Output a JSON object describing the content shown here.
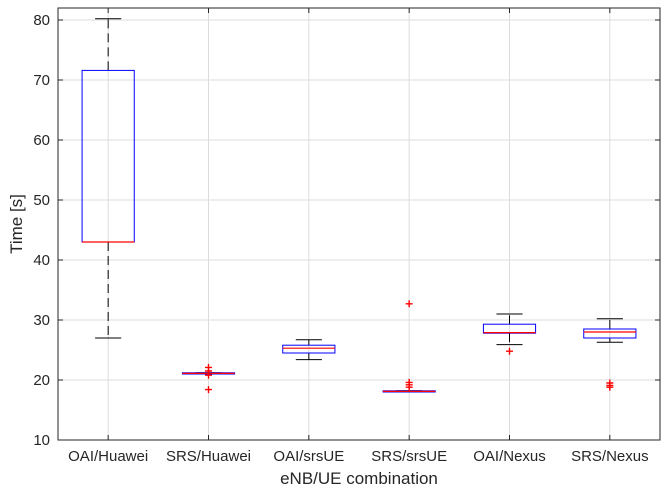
{
  "chart_data": {
    "type": "box",
    "title": "",
    "xlabel": "eNB/UE combination",
    "ylabel": "Time [s]",
    "ylim": [
      10,
      82
    ],
    "yticks": [
      10,
      20,
      30,
      40,
      50,
      60,
      70,
      80
    ],
    "grid": true,
    "categories": [
      "OAI/Huawei",
      "SRS/Huawei",
      "OAI/srsUE",
      "SRS/srsUE",
      "OAI/Nexus",
      "SRS/Nexus"
    ],
    "boxes": [
      {
        "category": "OAI/Huawei",
        "whisker_low": 27.0,
        "q1": 43.0,
        "median": 43.0,
        "q3": 71.6,
        "whisker_high": 80.2,
        "outliers": []
      },
      {
        "category": "SRS/Huawei",
        "whisker_low": 21.0,
        "q1": 21.0,
        "median": 21.1,
        "q3": 21.2,
        "whisker_high": 21.2,
        "outliers": [
          18.4,
          20.8,
          21.5,
          22.1
        ]
      },
      {
        "category": "OAI/srsUE",
        "whisker_low": 23.4,
        "q1": 24.5,
        "median": 25.3,
        "q3": 25.8,
        "whisker_high": 26.7,
        "outliers": []
      },
      {
        "category": "SRS/srsUE",
        "whisker_low": 18.0,
        "q1": 18.0,
        "median": 18.1,
        "q3": 18.2,
        "whisker_high": 18.2,
        "outliers": [
          18.8,
          19.2,
          19.6,
          32.7
        ]
      },
      {
        "category": "OAI/Nexus",
        "whisker_low": 25.9,
        "q1": 27.8,
        "median": 27.9,
        "q3": 29.3,
        "whisker_high": 31.0,
        "outliers": [
          24.8
        ]
      },
      {
        "category": "SRS/Nexus",
        "whisker_low": 26.3,
        "q1": 27.0,
        "median": 28.0,
        "q3": 28.5,
        "whisker_high": 30.2,
        "outliers": [
          18.8,
          19.1,
          19.5
        ]
      }
    ],
    "colors": {
      "box": "#0000ff",
      "median": "#ff0000",
      "whisker": "#000000",
      "outlier": "#ff0000",
      "grid": "#dcdcdc",
      "axis": "#262626"
    }
  }
}
